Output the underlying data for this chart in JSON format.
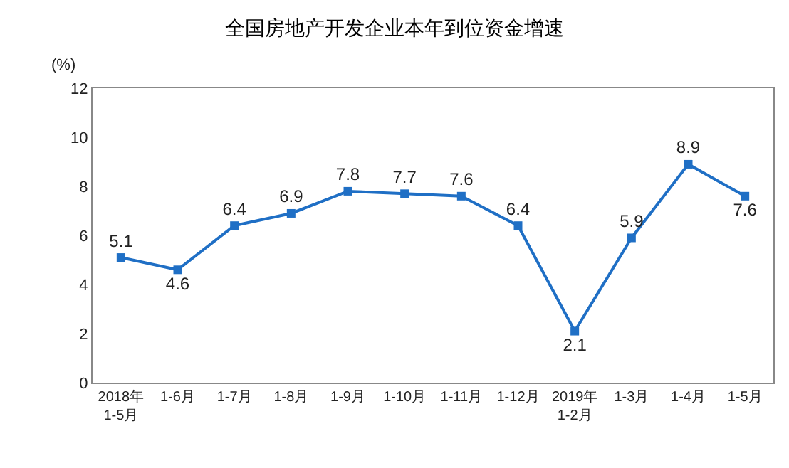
{
  "chart_data": {
    "type": "line",
    "title": "全国房地产开发企业本年到位资金增速",
    "ylabel": "(%)",
    "categories": [
      "2018年\n1-5月",
      "1-6月",
      "1-7月",
      "1-8月",
      "1-9月",
      "1-10月",
      "1-11月",
      "1-12月",
      "2019年\n1-2月",
      "1-3月",
      "1-4月",
      "1-5月"
    ],
    "series": [
      {
        "color": "#1f6fc5",
        "values": [
          5.1,
          4.6,
          6.4,
          6.9,
          7.8,
          7.7,
          7.6,
          6.4,
          2.1,
          5.9,
          8.9,
          7.6
        ]
      }
    ],
    "ylim": [
      0,
      12
    ],
    "yticks": [
      0,
      2,
      4,
      6,
      8,
      10,
      12
    ],
    "grid": false,
    "legend": false,
    "marker": "square",
    "line_style": "solid",
    "data_labels": true
  }
}
